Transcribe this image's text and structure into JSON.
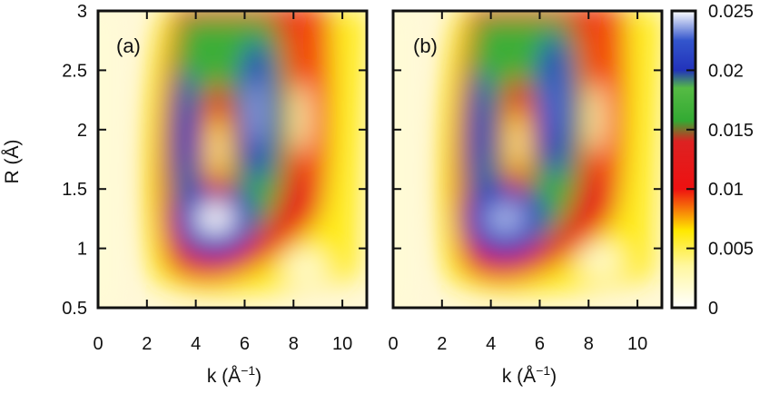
{
  "chart_data": {
    "type": "heatmap",
    "shared_axes": {
      "xlabel": "k (Å",
      "xlabel_sup": "−1",
      "xlabel_close": ")",
      "ylabel": "R (Å)",
      "xlim": [
        0,
        11
      ],
      "ylim": [
        0.5,
        3
      ],
      "xticks": [
        "0",
        "2",
        "4",
        "6",
        "8",
        "10"
      ],
      "yticks": [
        "0.5",
        "1",
        "1.5",
        "2",
        "2.5",
        "3"
      ]
    },
    "colorbar": {
      "range": [
        0,
        0.025
      ],
      "ticks": [
        "0",
        "0.005",
        "0.01",
        "0.015",
        "0.02",
        "0.025"
      ],
      "colors": [
        "#ffffff",
        "#ffee00",
        "#ee1111",
        "#33aa33",
        "#2233bb",
        "#ffffff"
      ]
    },
    "panels": [
      {
        "label": "(a)",
        "features": [
          {
            "k": 4.8,
            "R": 1.25,
            "value": 0.025
          },
          {
            "k": 3.6,
            "R": 1.95,
            "value": 0.021
          },
          {
            "k": 6.5,
            "R": 2.15,
            "value": 0.024
          },
          {
            "k": 4.9,
            "R": 1.85,
            "value": 0.002
          },
          {
            "k": 8.3,
            "R": 2.1,
            "value": 0.001
          },
          {
            "k": 8.5,
            "R": 0.85,
            "value": 0.0
          }
        ]
      },
      {
        "label": "(b)",
        "features": [
          {
            "k": 4.6,
            "R": 1.25,
            "value": 0.024
          },
          {
            "k": 3.6,
            "R": 1.95,
            "value": 0.02
          },
          {
            "k": 6.6,
            "R": 2.2,
            "value": 0.023
          },
          {
            "k": 5.1,
            "R": 1.9,
            "value": 0.002
          },
          {
            "k": 8.3,
            "R": 2.1,
            "value": 0.001
          },
          {
            "k": 8.5,
            "R": 0.9,
            "value": 0.0
          }
        ]
      }
    ]
  }
}
